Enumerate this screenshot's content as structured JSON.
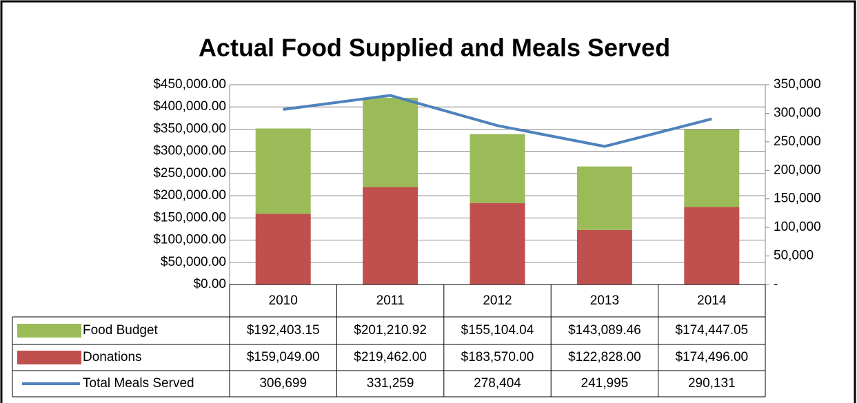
{
  "chart_data": {
    "type": "bar",
    "stacked": true,
    "title": "Actual Food Supplied and Meals Served",
    "categories": [
      "2010",
      "2011",
      "2012",
      "2013",
      "2014"
    ],
    "series": [
      {
        "name": "Food Budget",
        "color": "#9bbb59",
        "values": [
          192403.15,
          201210.92,
          155104.04,
          143089.46,
          174447.05
        ],
        "value_labels": [
          "$192,403.15",
          "$201,210.92",
          "$155,104.04",
          "$143,089.46",
          "$174,447.05"
        ]
      },
      {
        "name": "Donations",
        "color": "#c0504d",
        "values": [
          159049,
          219462,
          183570,
          122828,
          174496
        ],
        "value_labels": [
          "$159,049.00",
          "$219,462.00",
          "$183,570.00",
          "$122,828.00",
          "$174,496.00"
        ]
      },
      {
        "name": "Total Meals Served",
        "type": "line",
        "axis": "y2",
        "color": "#4f81bd",
        "values": [
          306699,
          331259,
          278404,
          241995,
          290131
        ],
        "value_labels": [
          "306,699",
          "331,259",
          "278,404",
          "241,995",
          "290,131"
        ]
      }
    ],
    "ylim": [
      0,
      450000
    ],
    "yticks": [
      {
        "value": 0,
        "label": "$0.00"
      },
      {
        "value": 50000,
        "label": "$50,000.00"
      },
      {
        "value": 100000,
        "label": "$100,000.00"
      },
      {
        "value": 150000,
        "label": "$150,000.00"
      },
      {
        "value": 200000,
        "label": "$200,000.00"
      },
      {
        "value": 250000,
        "label": "$250,000.00"
      },
      {
        "value": 300000,
        "label": "$300,000.00"
      },
      {
        "value": 350000,
        "label": "$350,000.00"
      },
      {
        "value": 400000,
        "label": "$400,000.00"
      },
      {
        "value": 450000,
        "label": "$450,000.00"
      }
    ],
    "y2lim": [
      0,
      350000
    ],
    "y2ticks": [
      {
        "value": 0,
        "label": "-"
      },
      {
        "value": 50000,
        "label": "50,000"
      },
      {
        "value": 100000,
        "label": "100,000"
      },
      {
        "value": 150000,
        "label": "150,000"
      },
      {
        "value": 200000,
        "label": "200,000"
      },
      {
        "value": 250000,
        "label": "250,000"
      },
      {
        "value": 300000,
        "label": "300,000"
      },
      {
        "value": 350000,
        "label": "350,000"
      }
    ],
    "grid": true
  }
}
